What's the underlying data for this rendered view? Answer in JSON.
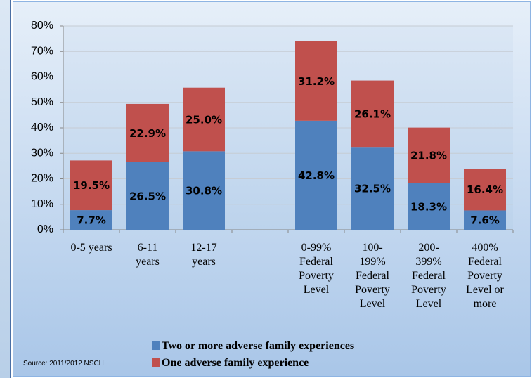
{
  "chart_data": {
    "type": "stacked_bar",
    "categories": [
      "0-5 years",
      "6-11\nyears",
      "12-17\nyears",
      null,
      "0-99%\nFederal\nPoverty\nLevel",
      "100-\n199%\nFederal\nPoverty\nLevel",
      "200-\n399%\nFederal\nPoverty\nLevel",
      "400%\nFederal\nPoverty\nLevel or\nmore"
    ],
    "series": [
      {
        "name": "Two or more adverse family experiences",
        "color": "#4f81bd",
        "values": [
          7.7,
          26.5,
          30.8,
          null,
          42.8,
          32.5,
          18.3,
          7.6
        ],
        "value_labels": [
          "7.7%",
          "26.5%",
          "30.8%",
          null,
          "42.8%",
          "32.5%",
          "18.3%",
          "7.6%"
        ]
      },
      {
        "name": "One adverse family experience",
        "color": "#c0504d",
        "values": [
          19.5,
          22.9,
          25,
          null,
          31.2,
          26.1,
          21.8,
          16.4
        ],
        "value_labels": [
          "19.5%",
          "22.9%",
          "25.0%",
          null,
          "31.2%",
          "26.1%",
          "21.8%",
          "16.4%"
        ]
      }
    ],
    "ylim": [
      0,
      80
    ],
    "yticks": [
      {
        "value": 0,
        "label": "0%"
      },
      {
        "value": 10,
        "label": "10%"
      },
      {
        "value": 20,
        "label": "20%"
      },
      {
        "value": 30,
        "label": "30%"
      },
      {
        "value": 40,
        "label": "40%"
      },
      {
        "value": 50,
        "label": "50%"
      },
      {
        "value": 60,
        "label": "60%"
      },
      {
        "value": 70,
        "label": "70%"
      },
      {
        "value": 80,
        "label": "80%"
      }
    ],
    "grid": true,
    "source": "Source:  2011/2012 NSCH"
  }
}
